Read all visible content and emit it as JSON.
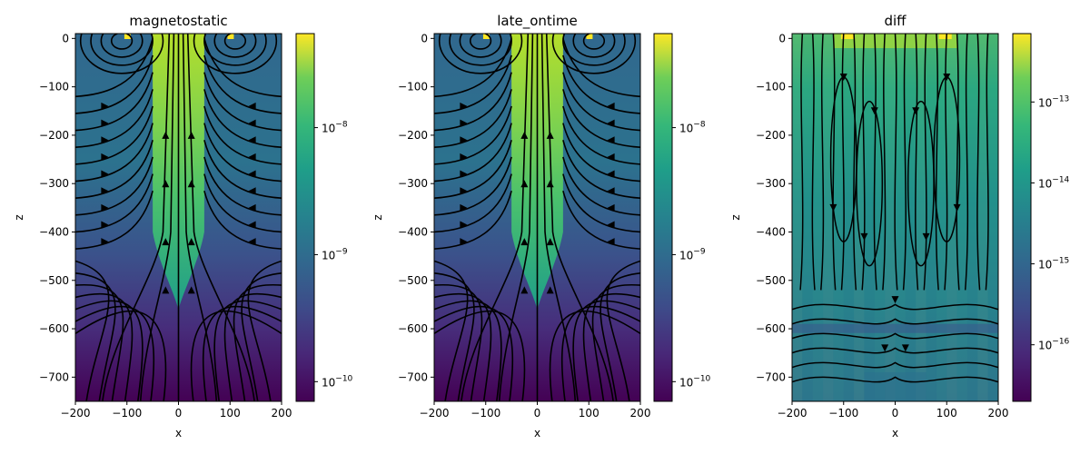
{
  "chart_data": [
    {
      "type": "heatmap",
      "title": "magnetostatic",
      "xlabel": "x",
      "ylabel": "z",
      "xlim": [
        -200,
        200
      ],
      "ylim": [
        -750,
        10
      ],
      "xticks": [
        -200,
        -100,
        0,
        100,
        200
      ],
      "yticks": [
        0,
        -100,
        -200,
        -300,
        -400,
        -500,
        -600,
        -700
      ],
      "colorbar": {
        "scale": "log",
        "range": [
          7e-11,
          5.5e-08
        ],
        "colormap": "viridis",
        "ticks": [
          {
            "base": "10",
            "exp": "−8"
          },
          {
            "base": "10",
            "exp": "−9"
          },
          {
            "base": "10",
            "exp": "−10"
          }
        ]
      },
      "overlay": "streamlines"
    },
    {
      "type": "heatmap",
      "title": "late_ontime",
      "xlabel": "x",
      "ylabel": "z",
      "xlim": [
        -200,
        200
      ],
      "ylim": [
        -750,
        10
      ],
      "xticks": [
        -200,
        -100,
        0,
        100,
        200
      ],
      "yticks": [
        0,
        -100,
        -200,
        -300,
        -400,
        -500,
        -600,
        -700
      ],
      "colorbar": {
        "scale": "log",
        "range": [
          7e-11,
          5.5e-08
        ],
        "colormap": "viridis",
        "ticks": [
          {
            "base": "10",
            "exp": "−8"
          },
          {
            "base": "10",
            "exp": "−9"
          },
          {
            "base": "10",
            "exp": "−10"
          }
        ]
      },
      "overlay": "streamlines"
    },
    {
      "type": "heatmap",
      "title": "diff",
      "xlabel": "x",
      "ylabel": "z",
      "xlim": [
        -200,
        200
      ],
      "ylim": [
        -750,
        10
      ],
      "xticks": [
        -200,
        -100,
        0,
        100,
        200
      ],
      "yticks": [
        0,
        -100,
        -200,
        -300,
        -400,
        -500,
        -600,
        -700
      ],
      "colorbar": {
        "scale": "log",
        "range": [
          2e-17,
          7e-13
        ],
        "colormap": "viridis",
        "ticks": [
          {
            "base": "10",
            "exp": "−13"
          },
          {
            "base": "10",
            "exp": "−14"
          },
          {
            "base": "10",
            "exp": "−15"
          },
          {
            "base": "10",
            "exp": "−16"
          }
        ]
      },
      "overlay": "streamlines"
    }
  ]
}
